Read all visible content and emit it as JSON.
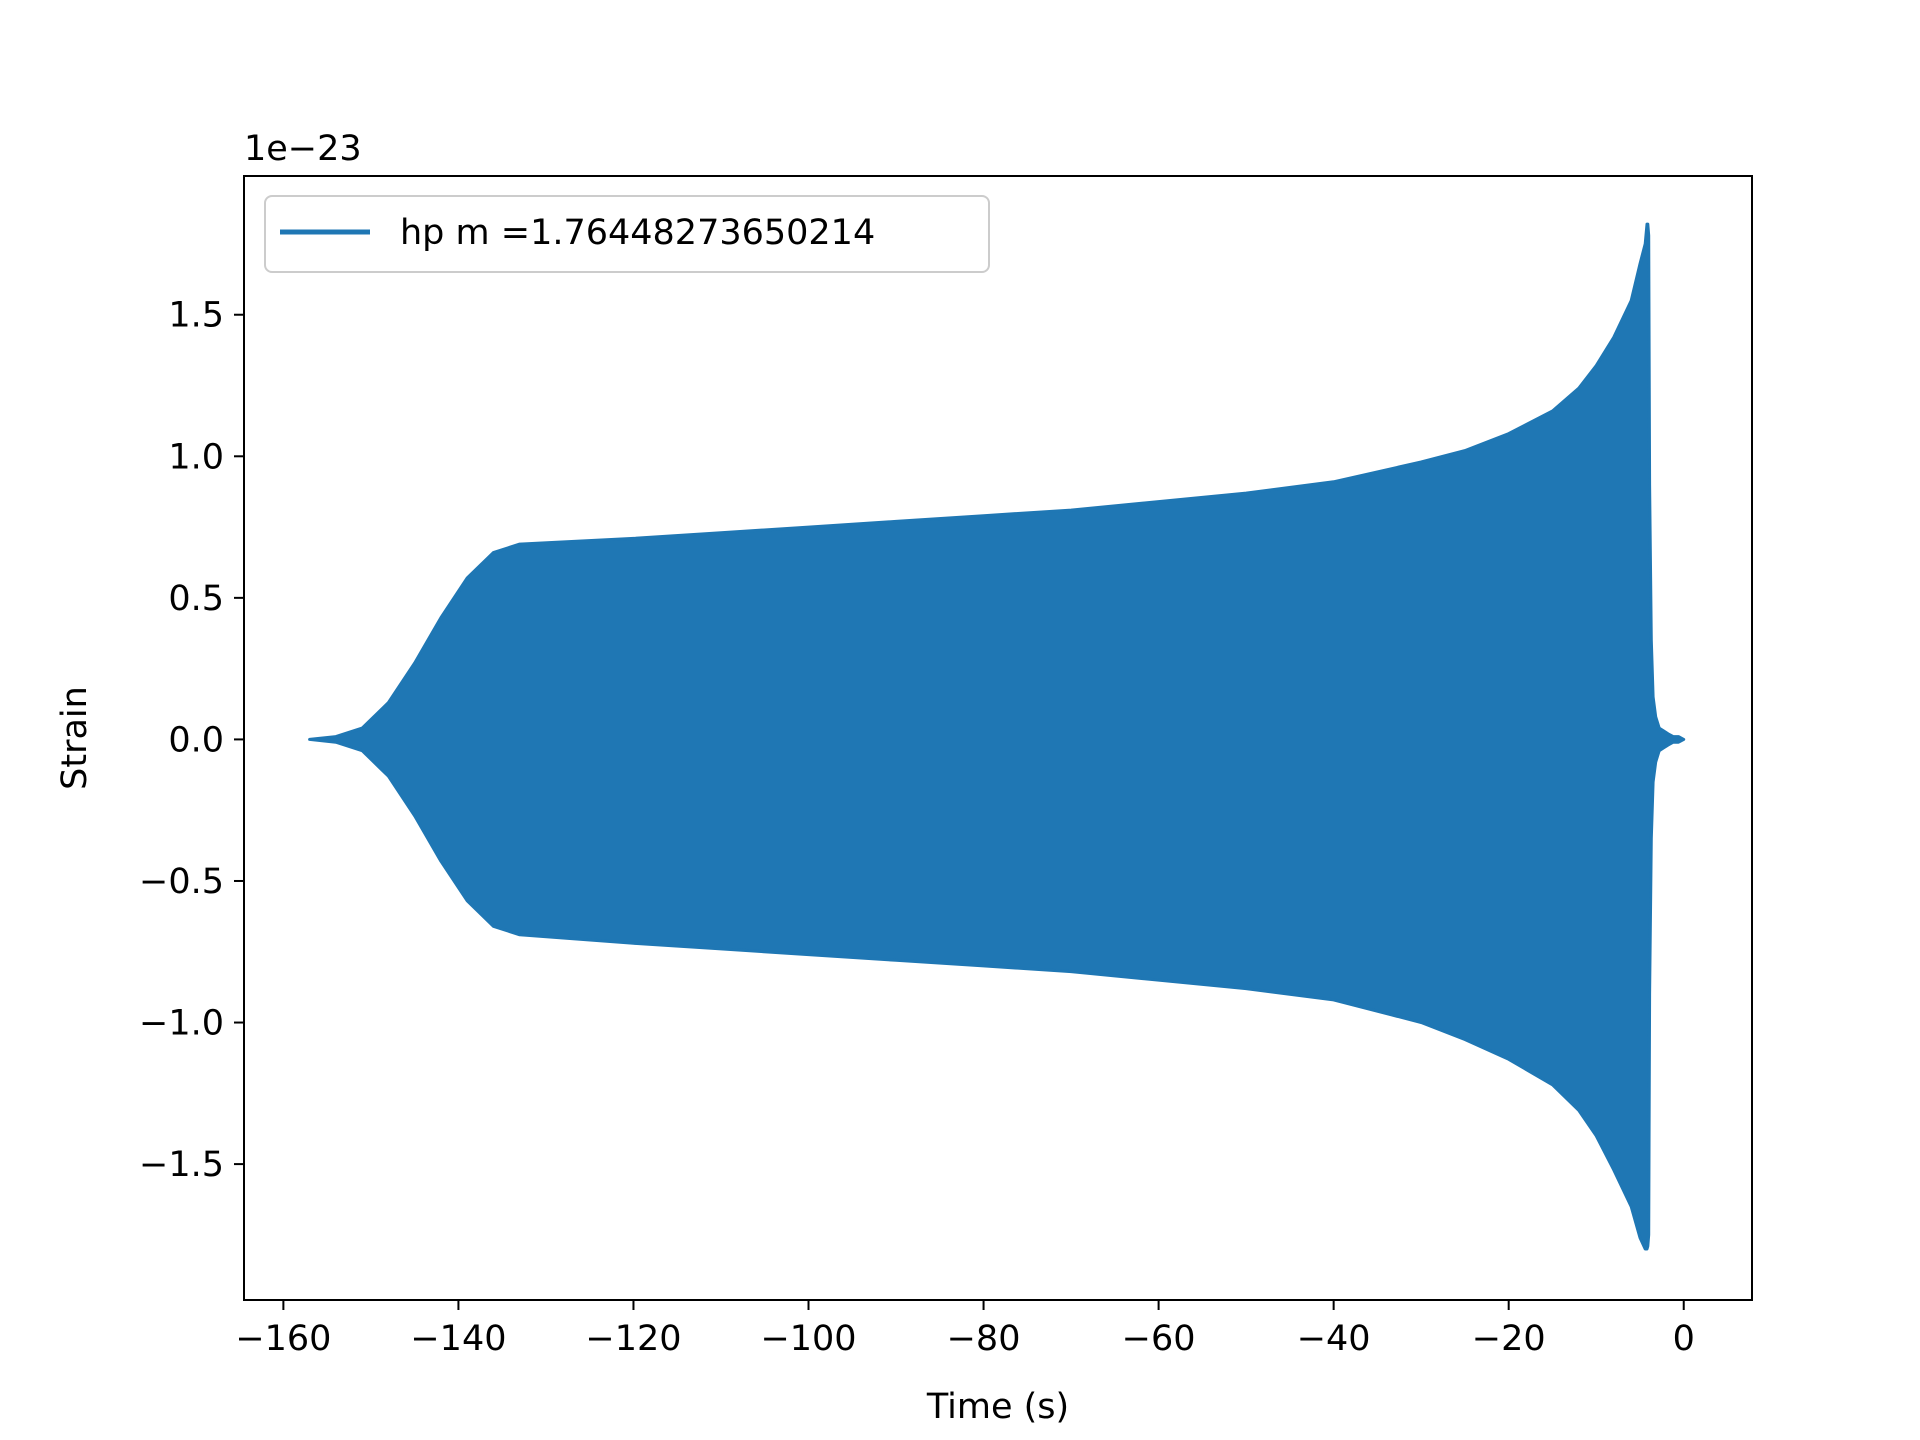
{
  "chart_data": {
    "type": "area",
    "xlabel": "Time (s)",
    "ylabel": "Strain",
    "offset_label": "1e−23",
    "xlim": [
      -164.5,
      7.8
    ],
    "ylim": [
      -1.98,
      1.99
    ],
    "xticks": [
      -160,
      -140,
      -120,
      -100,
      -80,
      -60,
      -40,
      -20,
      0
    ],
    "xtick_labels": [
      "−160",
      "−140",
      "−120",
      "−100",
      "−80",
      "−60",
      "−40",
      "−20",
      "0"
    ],
    "yticks": [
      -1.5,
      -1.0,
      -0.5,
      0.0,
      0.5,
      1.0,
      1.5
    ],
    "ytick_labels": [
      "−1.5",
      "−1.0",
      "−0.5",
      "0.0",
      "0.5",
      "1.0",
      "1.5"
    ],
    "grid": false,
    "legend_position": "upper-left",
    "series": [
      {
        "name": "hp m =1.76448273650214",
        "color": "#1f77b4",
        "envelope": {
          "x": [
            -157.0,
            -154.0,
            -151.0,
            -148.0,
            -145.0,
            -142.0,
            -139.0,
            -136.0,
            -133.0,
            -120.0,
            -110.0,
            -100.0,
            -90.0,
            -80.0,
            -70.0,
            -60.0,
            -50.0,
            -40.0,
            -30.0,
            -25.0,
            -20.0,
            -15.0,
            -12.0,
            -10.0,
            -8.0,
            -6.0,
            -5.0,
            -4.4,
            -4.2,
            -4.1,
            -4.0,
            -3.9,
            -3.7,
            -3.5,
            -3.2,
            -2.8,
            -2.3,
            -1.8,
            -1.2,
            -0.6,
            0.0
          ],
          "upper": [
            0.0,
            0.01,
            0.04,
            0.13,
            0.27,
            0.43,
            0.57,
            0.66,
            0.69,
            0.71,
            0.73,
            0.75,
            0.77,
            0.79,
            0.81,
            0.84,
            0.87,
            0.91,
            0.98,
            1.02,
            1.08,
            1.16,
            1.24,
            1.32,
            1.42,
            1.55,
            1.68,
            1.75,
            1.82,
            1.82,
            1.78,
            0.9,
            0.35,
            0.15,
            0.08,
            0.04,
            0.03,
            0.02,
            0.01,
            0.01,
            0.0
          ],
          "lower": [
            0.0,
            -0.01,
            -0.04,
            -0.13,
            -0.27,
            -0.43,
            -0.57,
            -0.66,
            -0.69,
            -0.72,
            -0.74,
            -0.76,
            -0.78,
            -0.8,
            -0.82,
            -0.85,
            -0.88,
            -0.92,
            -1.0,
            -1.06,
            -1.13,
            -1.22,
            -1.31,
            -1.4,
            -1.52,
            -1.65,
            -1.76,
            -1.8,
            -1.8,
            -1.79,
            -1.75,
            -0.9,
            -0.35,
            -0.15,
            -0.08,
            -0.04,
            -0.03,
            -0.02,
            -0.01,
            -0.01,
            0.0
          ]
        }
      }
    ]
  }
}
